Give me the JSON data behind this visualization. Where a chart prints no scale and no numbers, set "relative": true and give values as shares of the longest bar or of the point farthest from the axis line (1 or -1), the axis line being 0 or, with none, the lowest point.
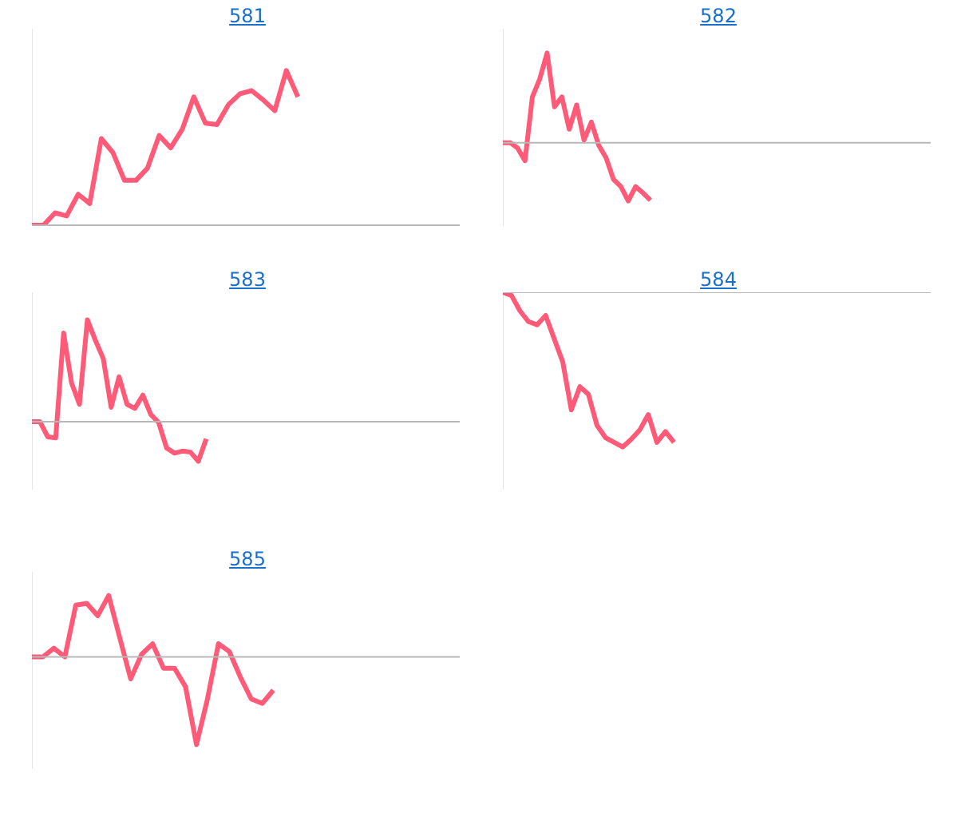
{
  "chart_data": [
    {
      "type": "line",
      "title": "581",
      "relative": true,
      "marker": "none",
      "categories": [
        null,
        null,
        null,
        null,
        null,
        null,
        null,
        null,
        null,
        null,
        null,
        null,
        null,
        null,
        null,
        null,
        null,
        null,
        null,
        null,
        null,
        null,
        null,
        null,
        null,
        null,
        null,
        null,
        null,
        null,
        null,
        null,
        null,
        null,
        null,
        null,
        null,
        null
      ],
      "series": [
        {
          "color": "#ff5a78",
          "values": [
            0,
            0,
            0.08,
            0.06,
            0.2,
            0.14,
            0.56,
            0.47,
            0.29,
            0.29,
            0.37,
            0.58,
            0.5,
            0.62,
            0.83,
            0.66,
            0.65,
            0.78,
            0.85,
            0.87,
            0.81,
            0.74,
            1,
            0.83,
            null,
            null,
            null,
            null,
            null,
            null,
            null,
            null,
            null,
            null,
            null,
            null,
            null,
            null
          ]
        }
      ]
    },
    {
      "type": "line",
      "title": "582",
      "relative": true,
      "marker": "none",
      "categories": [
        null,
        null,
        null,
        null,
        null,
        null,
        null,
        null,
        null,
        null,
        null,
        null,
        null,
        null,
        null,
        null,
        null,
        null,
        null,
        null,
        null,
        null,
        null,
        null,
        null,
        null,
        null,
        null,
        null,
        null,
        null,
        null,
        null,
        null,
        null,
        null,
        null,
        null,
        null,
        null,
        null,
        null,
        null,
        null,
        null,
        null,
        null,
        null,
        null,
        null,
        null,
        null,
        null,
        null,
        null,
        null,
        null,
        null,
        null
      ],
      "series": [
        {
          "color": "#ff5a78",
          "values": [
            0,
            0,
            -0.06,
            -0.2,
            0.51,
            0.71,
            1,
            0.4,
            0.51,
            0.15,
            0.42,
            0.03,
            0.23,
            -0.03,
            -0.17,
            -0.41,
            -0.49,
            -0.65,
            -0.49,
            -0.56,
            -0.64,
            null,
            null,
            null,
            null,
            null,
            null,
            null,
            null,
            null,
            null,
            null,
            null,
            null,
            null,
            null,
            null,
            null,
            null,
            null,
            null,
            null,
            null,
            null,
            null,
            null,
            null,
            null,
            null,
            null,
            null,
            null,
            null,
            null,
            null,
            null,
            null,
            null,
            null
          ]
        }
      ]
    },
    {
      "type": "line",
      "title": "583",
      "relative": true,
      "marker": "none",
      "categories": [
        null,
        null,
        null,
        null,
        null,
        null,
        null,
        null,
        null,
        null,
        null,
        null,
        null,
        null,
        null,
        null,
        null,
        null,
        null,
        null,
        null,
        null,
        null,
        null,
        null,
        null,
        null,
        null,
        null,
        null,
        null,
        null,
        null,
        null,
        null,
        null,
        null,
        null,
        null,
        null,
        null,
        null,
        null,
        null,
        null,
        null,
        null,
        null,
        null,
        null,
        null,
        null,
        null,
        null,
        null
      ],
      "series": [
        {
          "color": "#ff5a78",
          "values": [
            0,
            0,
            -0.15,
            -0.16,
            0.87,
            0.38,
            0.17,
            1,
            0.8,
            0.62,
            0.14,
            0.44,
            0.17,
            0.13,
            0.26,
            0.07,
            -0.01,
            -0.26,
            -0.31,
            -0.29,
            -0.3,
            -0.39,
            -0.17,
            null,
            null,
            null,
            null,
            null,
            null,
            null,
            null,
            null,
            null,
            null,
            null,
            null,
            null,
            null,
            null,
            null,
            null,
            null,
            null,
            null,
            null,
            null,
            null,
            null,
            null,
            null,
            null,
            null,
            null,
            null,
            null
          ]
        }
      ]
    },
    {
      "type": "line",
      "title": "584",
      "relative": true,
      "marker": "none",
      "categories": [
        null,
        null,
        null,
        null,
        null,
        null,
        null,
        null,
        null,
        null,
        null,
        null,
        null,
        null,
        null,
        null,
        null,
        null,
        null,
        null,
        null,
        null,
        null,
        null,
        null,
        null,
        null,
        null,
        null,
        null,
        null,
        null,
        null,
        null,
        null,
        null,
        null,
        null,
        null,
        null,
        null,
        null,
        null,
        null,
        null,
        null,
        null,
        null,
        null,
        null,
        null
      ],
      "series": [
        {
          "color": "#ff5a78",
          "values": [
            0,
            -0.02,
            -0.12,
            -0.19,
            -0.21,
            -0.15,
            -0.3,
            -0.45,
            -0.76,
            -0.61,
            -0.66,
            -0.86,
            -0.94,
            -0.97,
            -1,
            -0.95,
            -0.89,
            -0.79,
            -0.97,
            -0.9,
            -0.97,
            null,
            null,
            null,
            null,
            null,
            null,
            null,
            null,
            null,
            null,
            null,
            null,
            null,
            null,
            null,
            null,
            null,
            null,
            null,
            null,
            null,
            null,
            null,
            null,
            null,
            null,
            null,
            null,
            null,
            null
          ]
        }
      ]
    },
    {
      "type": "line",
      "title": "585",
      "relative": true,
      "marker": "none",
      "categories": [
        null,
        null,
        null,
        null,
        null,
        null,
        null,
        null,
        null,
        null,
        null,
        null,
        null,
        null,
        null,
        null,
        null,
        null,
        null,
        null,
        null,
        null,
        null,
        null,
        null,
        null,
        null,
        null,
        null,
        null,
        null,
        null,
        null,
        null,
        null,
        null,
        null,
        null,
        null,
        null
      ],
      "series": [
        {
          "color": "#ff5a78",
          "values": [
            0,
            0,
            0.1,
            0,
            0.59,
            0.61,
            0.47,
            0.7,
            0.22,
            -0.25,
            0.03,
            0.15,
            -0.13,
            -0.13,
            -0.34,
            -1,
            -0.48,
            0.15,
            0.06,
            -0.23,
            -0.48,
            -0.53,
            -0.38,
            null,
            null,
            null,
            null,
            null,
            null,
            null,
            null,
            null,
            null,
            null,
            null,
            null,
            null,
            null,
            null,
            null
          ]
        }
      ]
    }
  ]
}
